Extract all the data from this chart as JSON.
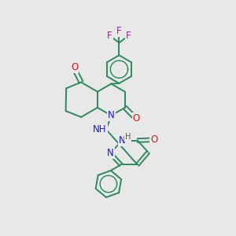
{
  "bg_color": "#e8e8e8",
  "bond_color": "#2d8a5e",
  "bond_width": 1.4,
  "atom_colors": {
    "N": "#1a1acc",
    "O": "#cc1a1a",
    "F": "#cc00cc",
    "H": "#555555",
    "C": "#2d8a5e"
  },
  "font_size": 8.5,
  "figsize": [
    3.0,
    3.0
  ],
  "dpi": 100
}
